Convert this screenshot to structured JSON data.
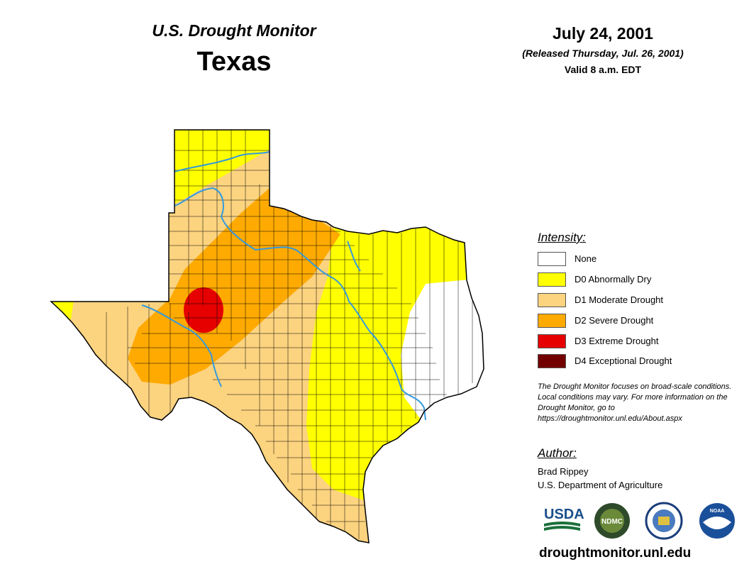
{
  "header": {
    "product": "U.S. Drought Monitor",
    "region": "Texas",
    "date": "July 24, 2001",
    "released": "(Released Thursday, Jul. 26, 2001)",
    "valid": "Valid 8 a.m. EDT"
  },
  "legend": {
    "title": "Intensity:",
    "items": [
      {
        "label": "None",
        "color": "#ffffff"
      },
      {
        "label": "D0 Abnormally Dry",
        "color": "#ffff00"
      },
      {
        "label": "D1 Moderate Drought",
        "color": "#fcd37f"
      },
      {
        "label": "D2 Severe Drought",
        "color": "#ffaa00"
      },
      {
        "label": "D3 Extreme Drought",
        "color": "#e60000"
      },
      {
        "label": "D4 Exceptional Drought",
        "color": "#730000"
      }
    ]
  },
  "note": "The Drought Monitor focuses on broad-scale conditions. Local conditions may vary. For more information on the Drought Monitor, go to https://droughtmonitor.unl.edu/About.aspx",
  "author": {
    "title": "Author:",
    "name": "Brad Rippey",
    "org": "U.S. Department of Agriculture"
  },
  "logos": [
    {
      "text": "USDA",
      "icon": "usda-logo"
    },
    {
      "text": "NDMC",
      "icon": "ndmc-logo"
    },
    {
      "text": "",
      "icon": "doc-seal-logo"
    },
    {
      "text": "NOAA",
      "icon": "noaa-logo"
    }
  ],
  "website": "droughtmonitor.unl.edu",
  "map": {
    "rivers_color": "#3399dd",
    "border_color": "#000000"
  }
}
